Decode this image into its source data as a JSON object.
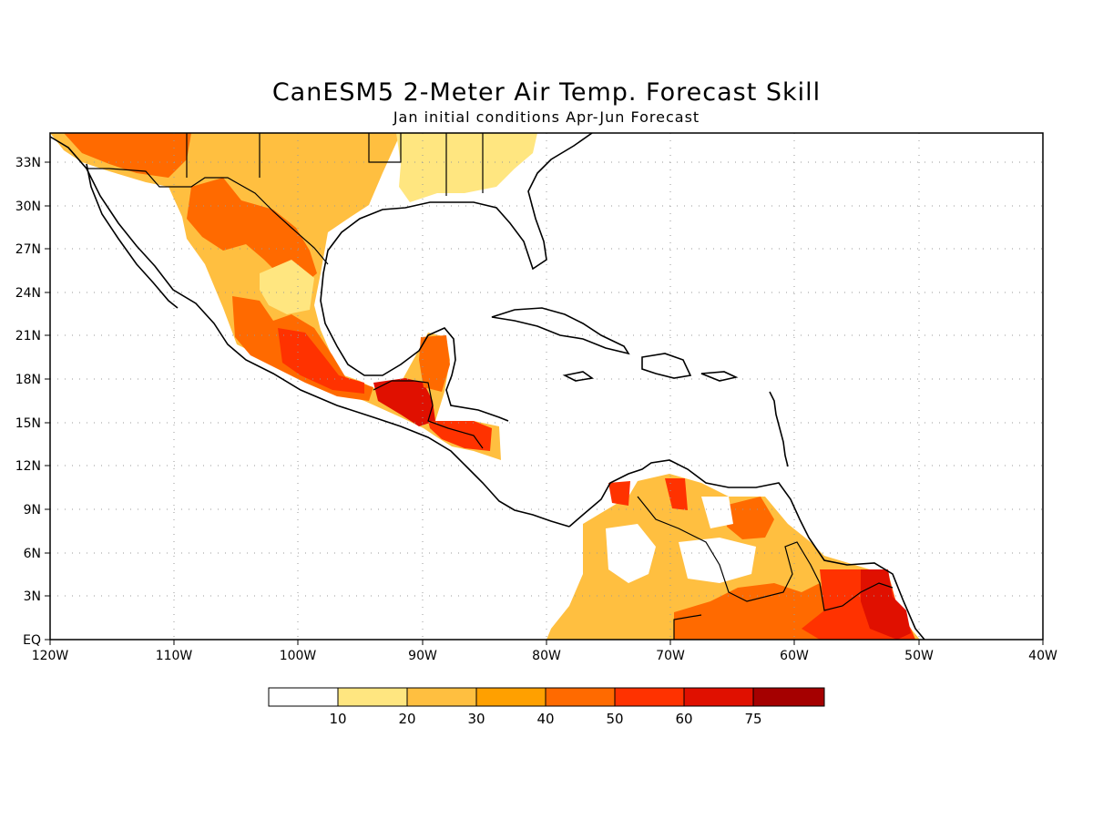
{
  "title": "CanESM5 2-Meter Air Temp. Forecast Skill",
  "subtitle": "Jan initial conditions  Apr-Jun Forecast",
  "map": {
    "lon_range": [
      -120,
      -40
    ],
    "lat_range": [
      0,
      35
    ],
    "lat_ticks": [
      "33N",
      "30N",
      "27N",
      "24N",
      "21N",
      "18N",
      "15N",
      "12N",
      "9N",
      "6N",
      "3N",
      "EQ"
    ],
    "lon_ticks": [
      "120W",
      "110W",
      "100W",
      "90W",
      "80W",
      "70W",
      "60W",
      "50W",
      "40W"
    ],
    "grid": "dotted"
  },
  "colorbar": {
    "colors": [
      "#ffffff",
      "#ffe680",
      "#ffbf40",
      "#ffa000",
      "#ff6a00",
      "#ff3200",
      "#e01000",
      "#a50000"
    ],
    "labels": [
      "10",
      "20",
      "30",
      "40",
      "50",
      "60",
      "75"
    ]
  }
}
